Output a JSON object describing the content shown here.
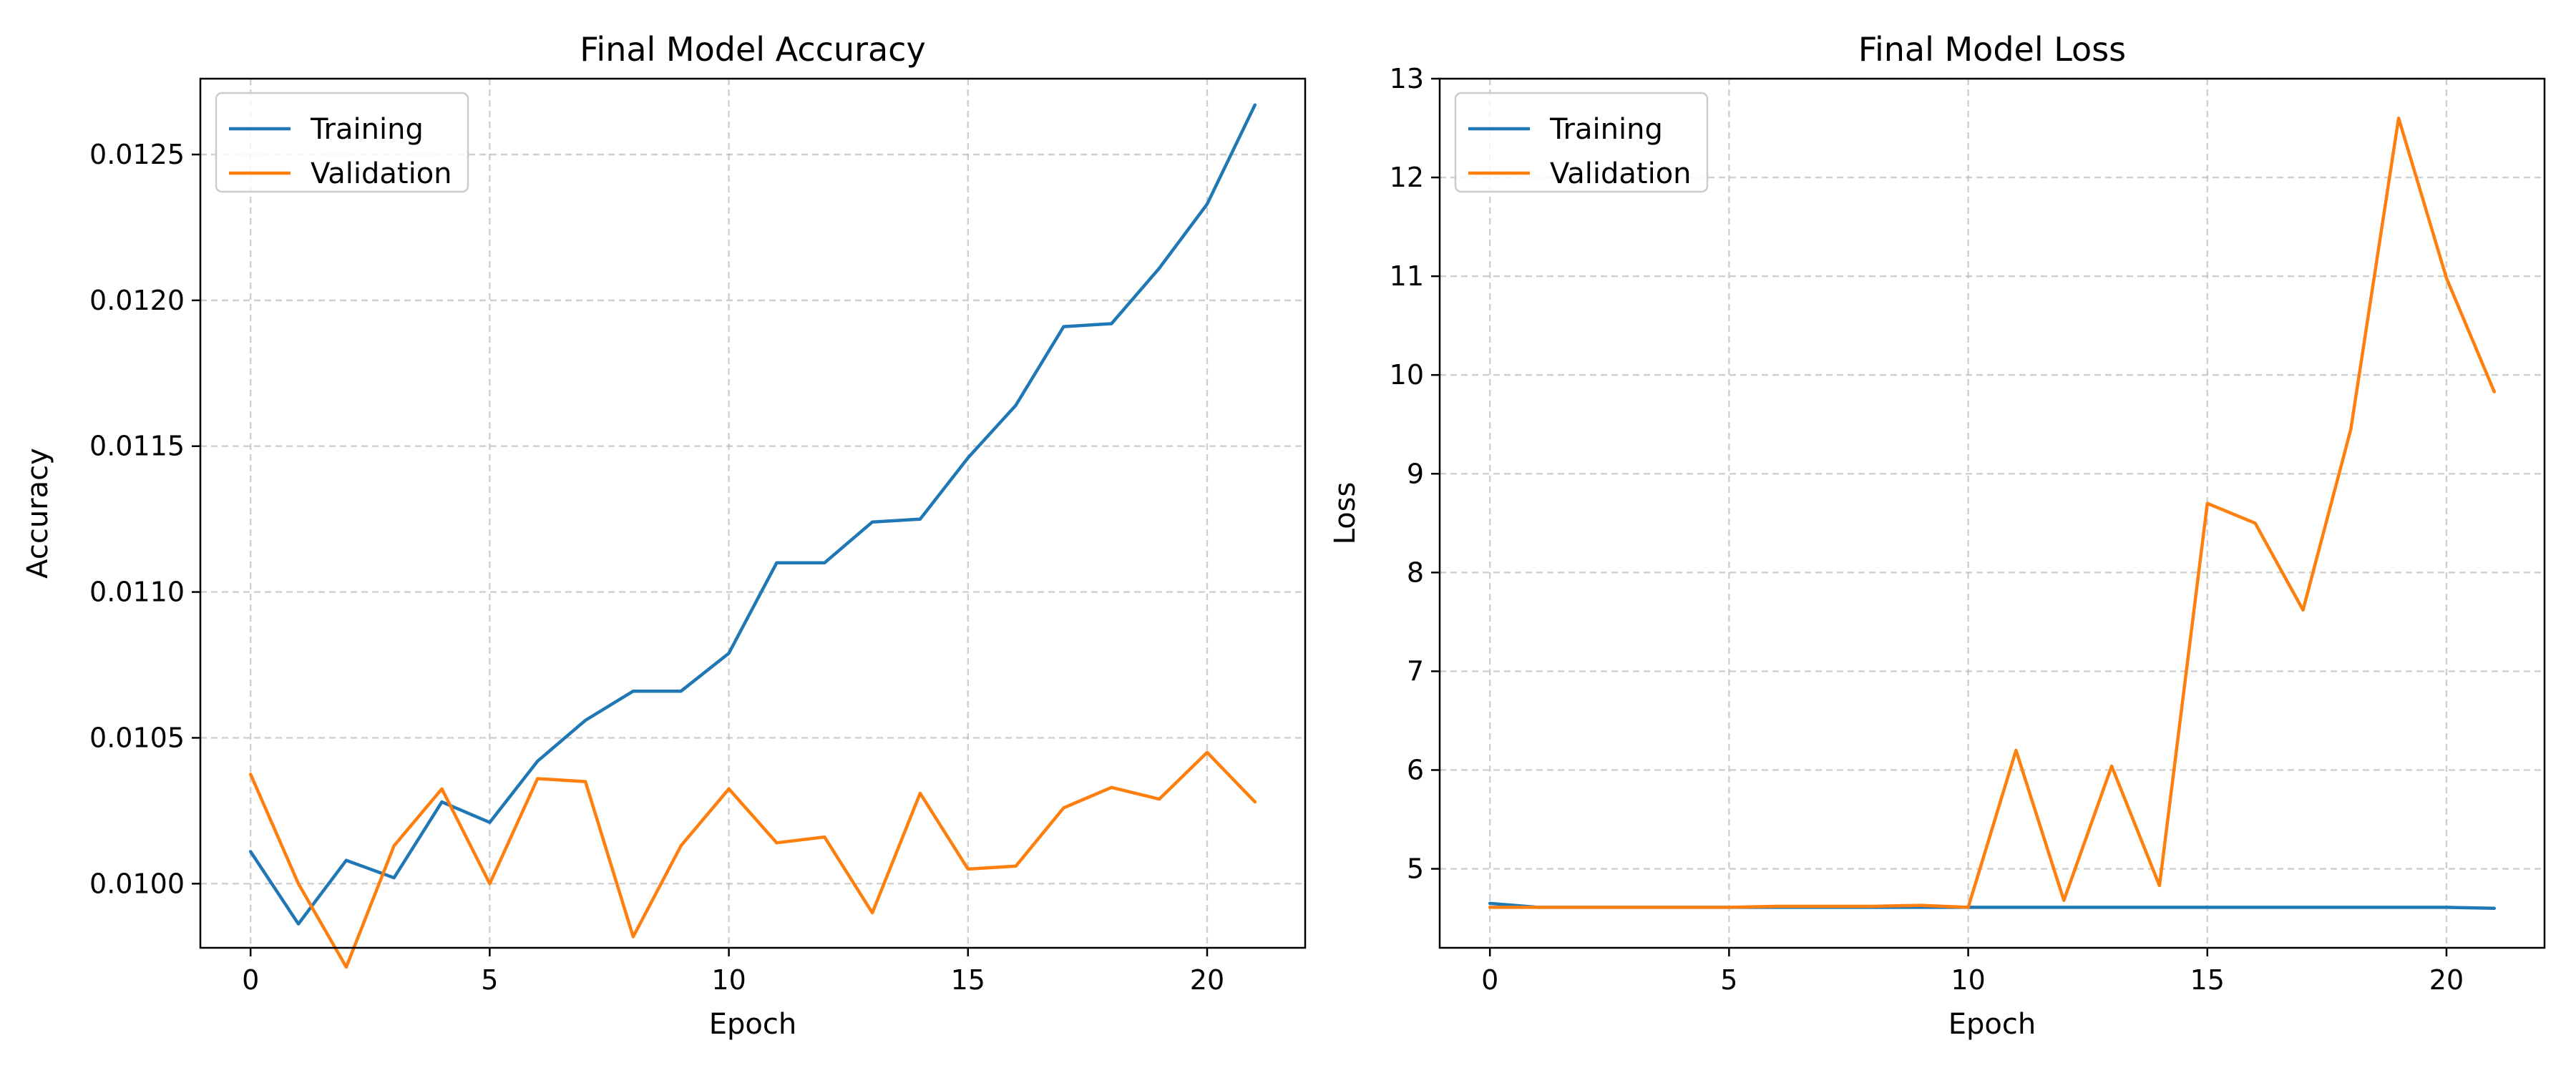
{
  "chart_data": [
    {
      "type": "line",
      "title": "Final Model Accuracy",
      "xlabel": "Epoch",
      "ylabel": "Accuracy",
      "xlim": [
        -1.05,
        22.05
      ],
      "ylim": [
        0.00978,
        0.01276
      ],
      "xticks": [
        0,
        5,
        10,
        15,
        20
      ],
      "xtick_labels": [
        "0",
        "5",
        "10",
        "15",
        "20"
      ],
      "yticks": [
        0.01,
        0.0105,
        0.011,
        0.0115,
        0.012,
        0.0125
      ],
      "ytick_labels": [
        "0.0100",
        "0.0105",
        "0.0110",
        "0.0115",
        "0.0120",
        "0.0125"
      ],
      "grid": true,
      "legend_position": "upper-left",
      "x": [
        0,
        1,
        2,
        3,
        4,
        5,
        6,
        7,
        8,
        9,
        10,
        11,
        12,
        13,
        14,
        15,
        16,
        17,
        18,
        19,
        20,
        21
      ],
      "series": [
        {
          "name": "Training",
          "color": "#1f77b4",
          "values": [
            0.01011,
            0.009862,
            0.01008,
            0.01002,
            0.01028,
            0.01021,
            0.01042,
            0.01056,
            0.01066,
            0.01066,
            0.01079,
            0.0111,
            0.0111,
            0.01124,
            0.01125,
            0.01146,
            0.01164,
            0.01191,
            0.01192,
            0.01211,
            0.01233,
            0.01267
          ]
        },
        {
          "name": "Validation",
          "color": "#ff7f0e",
          "values": [
            0.010375,
            0.01,
            0.009714,
            0.01013,
            0.010325,
            0.01,
            0.01036,
            0.01035,
            0.009818,
            0.01013,
            0.010325,
            0.01014,
            0.01016,
            0.0099,
            0.01031,
            0.01005,
            0.01006,
            0.01026,
            0.01033,
            0.01029,
            0.01045,
            0.01028
          ]
        }
      ]
    },
    {
      "type": "line",
      "title": "Final Model Loss",
      "xlabel": "Epoch",
      "ylabel": "Loss",
      "xlim": [
        -1.05,
        22.05
      ],
      "ylim": [
        4.2,
        13.0
      ],
      "xticks": [
        0,
        5,
        10,
        15,
        20
      ],
      "xtick_labels": [
        "0",
        "5",
        "10",
        "15",
        "20"
      ],
      "yticks": [
        5,
        6,
        7,
        8,
        9,
        10,
        11,
        12,
        13
      ],
      "ytick_labels": [
        "5",
        "6",
        "7",
        "8",
        "9",
        "10",
        "11",
        "12",
        "13"
      ],
      "grid": true,
      "legend_position": "upper-left",
      "x": [
        0,
        1,
        2,
        3,
        4,
        5,
        6,
        7,
        8,
        9,
        10,
        11,
        12,
        13,
        14,
        15,
        16,
        17,
        18,
        19,
        20,
        21
      ],
      "series": [
        {
          "name": "Training",
          "color": "#1f77b4",
          "values": [
            4.65,
            4.61,
            4.61,
            4.61,
            4.61,
            4.61,
            4.61,
            4.61,
            4.61,
            4.61,
            4.61,
            4.61,
            4.61,
            4.61,
            4.61,
            4.61,
            4.61,
            4.61,
            4.61,
            4.61,
            4.61,
            4.6
          ]
        },
        {
          "name": "Validation",
          "color": "#ff7f0e",
          "values": [
            4.61,
            4.61,
            4.61,
            4.61,
            4.61,
            4.61,
            4.62,
            4.62,
            4.62,
            4.63,
            4.61,
            6.2,
            4.68,
            6.04,
            4.83,
            8.7,
            8.5,
            7.62,
            9.45,
            12.6,
            10.98,
            9.83
          ]
        }
      ]
    }
  ]
}
